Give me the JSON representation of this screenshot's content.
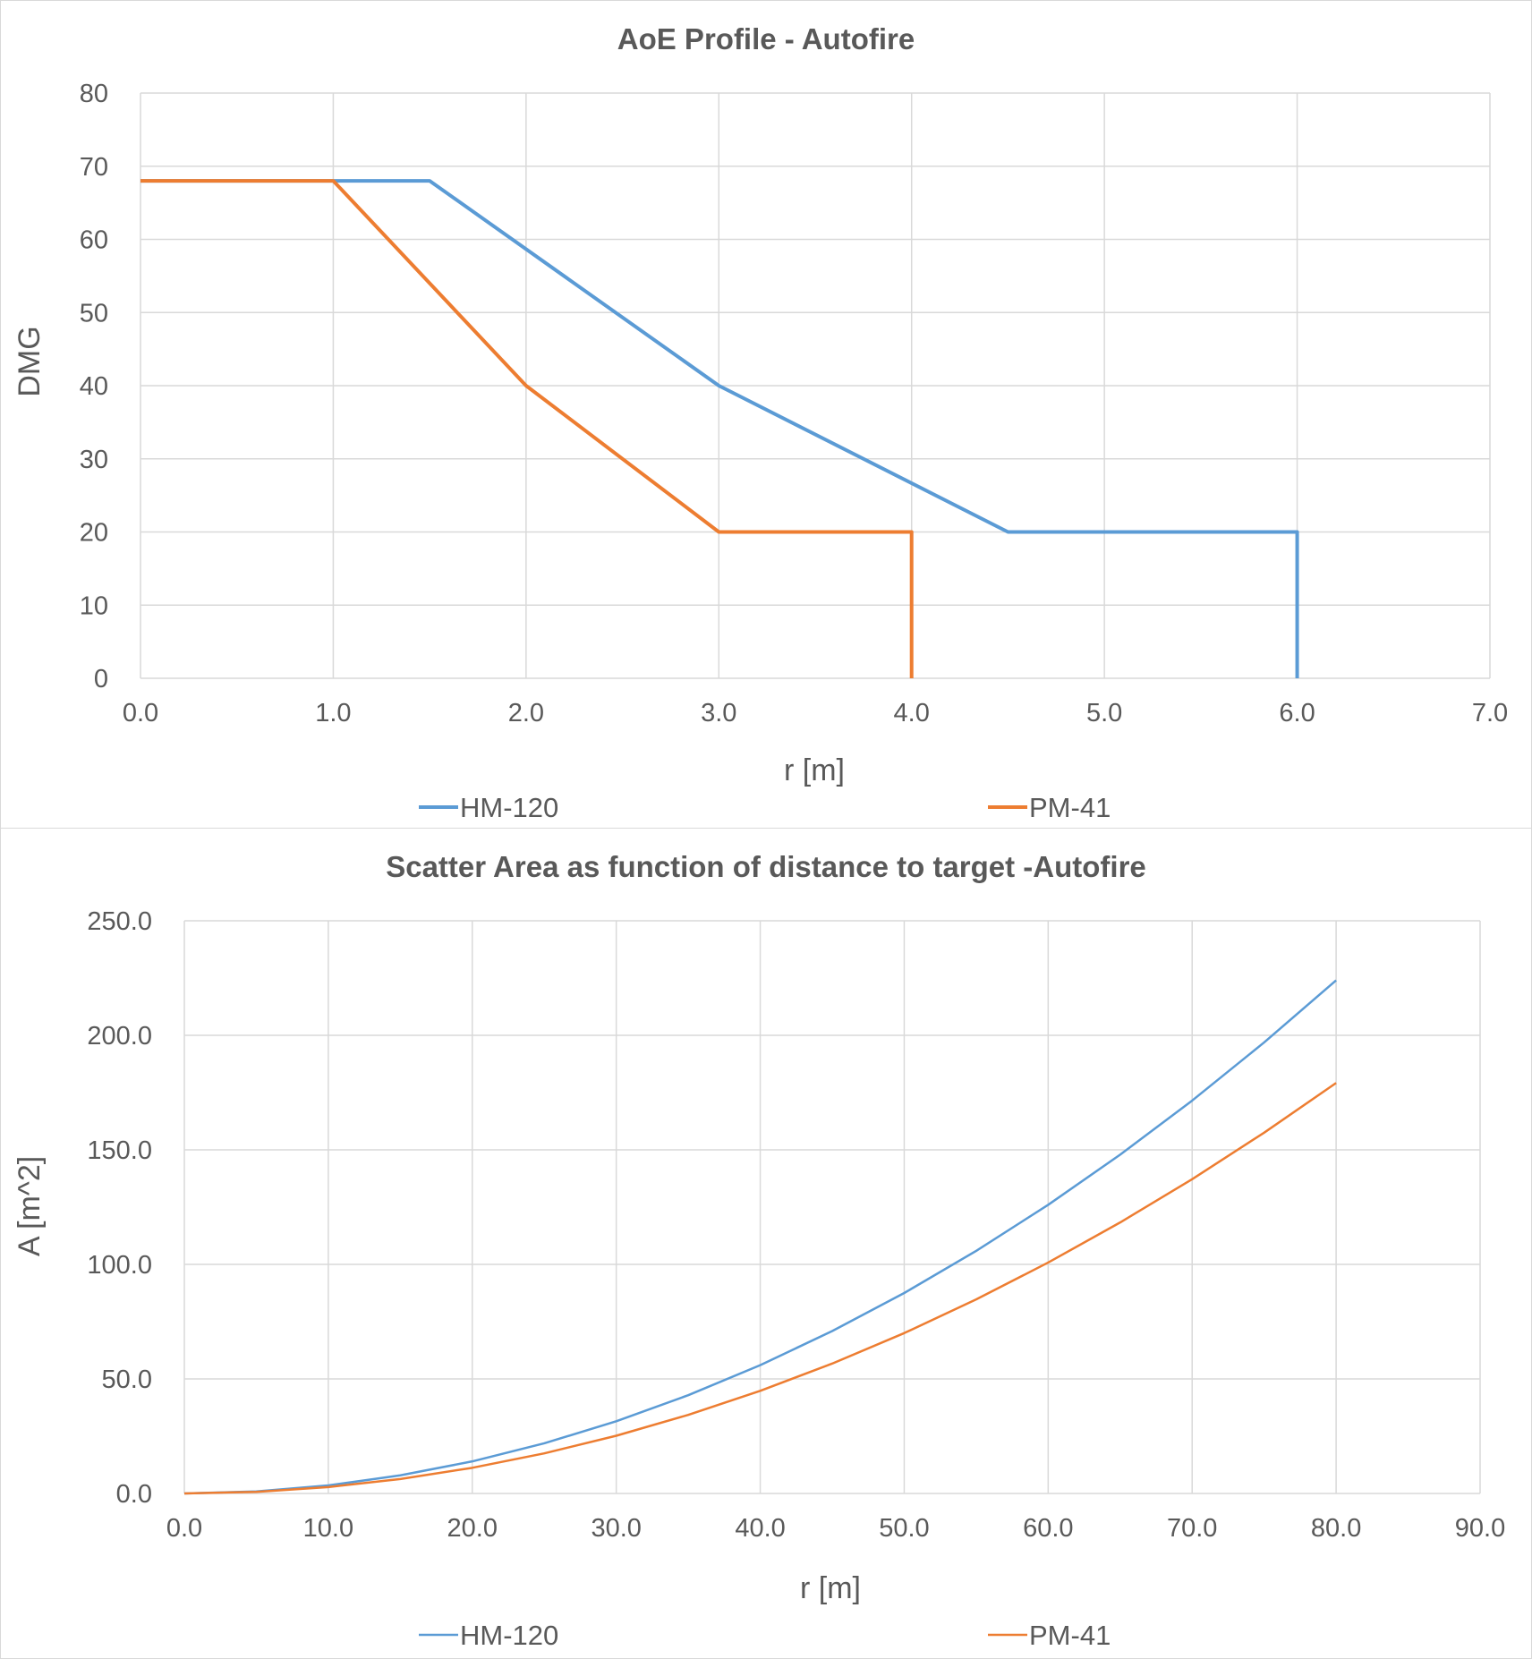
{
  "charts": [
    {
      "type": "line",
      "title": "AoE Profile - Autofire",
      "xlabel": "r [m]",
      "ylabel": "DMG",
      "xlim": [
        0,
        7
      ],
      "ylim": [
        0,
        80
      ],
      "xticks": [
        "0.0",
        "1.0",
        "2.0",
        "3.0",
        "4.0",
        "5.0",
        "6.0",
        "7.0"
      ],
      "yticks": [
        "0",
        "10",
        "20",
        "30",
        "40",
        "50",
        "60",
        "70",
        "80"
      ],
      "grid": true,
      "legend_position": "bottom",
      "series": [
        {
          "name": "HM-120",
          "color": "#5b9bd5",
          "x": [
            0,
            1.0,
            1.5,
            3.0,
            4.5,
            6.0,
            6.0
          ],
          "y": [
            68,
            68,
            68,
            40,
            20,
            20,
            0
          ]
        },
        {
          "name": "PM-41",
          "color": "#ed7d31",
          "x": [
            0,
            1.0,
            2.0,
            3.0,
            4.0,
            4.0
          ],
          "y": [
            68,
            68,
            40,
            20,
            20,
            0
          ]
        }
      ]
    },
    {
      "type": "line",
      "title": "Scatter Area as function of distance to target -Autofire",
      "xlabel": "r [m]",
      "ylabel": "A [m^2]",
      "xlim": [
        0,
        90
      ],
      "ylim": [
        0,
        250
      ],
      "xticks": [
        "0.0",
        "10.0",
        "20.0",
        "30.0",
        "40.0",
        "50.0",
        "60.0",
        "70.0",
        "80.0",
        "90.0"
      ],
      "yticks": [
        "0.0",
        "50.0",
        "100.0",
        "150.0",
        "200.0",
        "250.0"
      ],
      "grid": true,
      "legend_position": "bottom",
      "series": [
        {
          "name": "HM-120",
          "color": "#5b9bd5",
          "x": [
            0,
            5,
            10,
            15,
            20,
            25,
            30,
            35,
            40,
            45,
            50,
            55,
            60,
            65,
            70,
            75,
            80
          ],
          "y": [
            0,
            0.9,
            3.5,
            7.9,
            14.0,
            21.9,
            31.5,
            42.9,
            56.0,
            70.9,
            87.5,
            105.9,
            126.0,
            147.9,
            171.5,
            196.9,
            224.0
          ]
        },
        {
          "name": "PM-41",
          "color": "#ed7d31",
          "x": [
            0,
            5,
            10,
            15,
            20,
            25,
            30,
            35,
            40,
            45,
            50,
            55,
            60,
            65,
            70,
            75,
            80
          ],
          "y": [
            0,
            0.7,
            2.8,
            6.3,
            11.2,
            17.5,
            25.2,
            34.3,
            44.8,
            56.7,
            70.0,
            84.7,
            100.8,
            118.3,
            137.2,
            157.5,
            179.2
          ]
        }
      ]
    }
  ]
}
